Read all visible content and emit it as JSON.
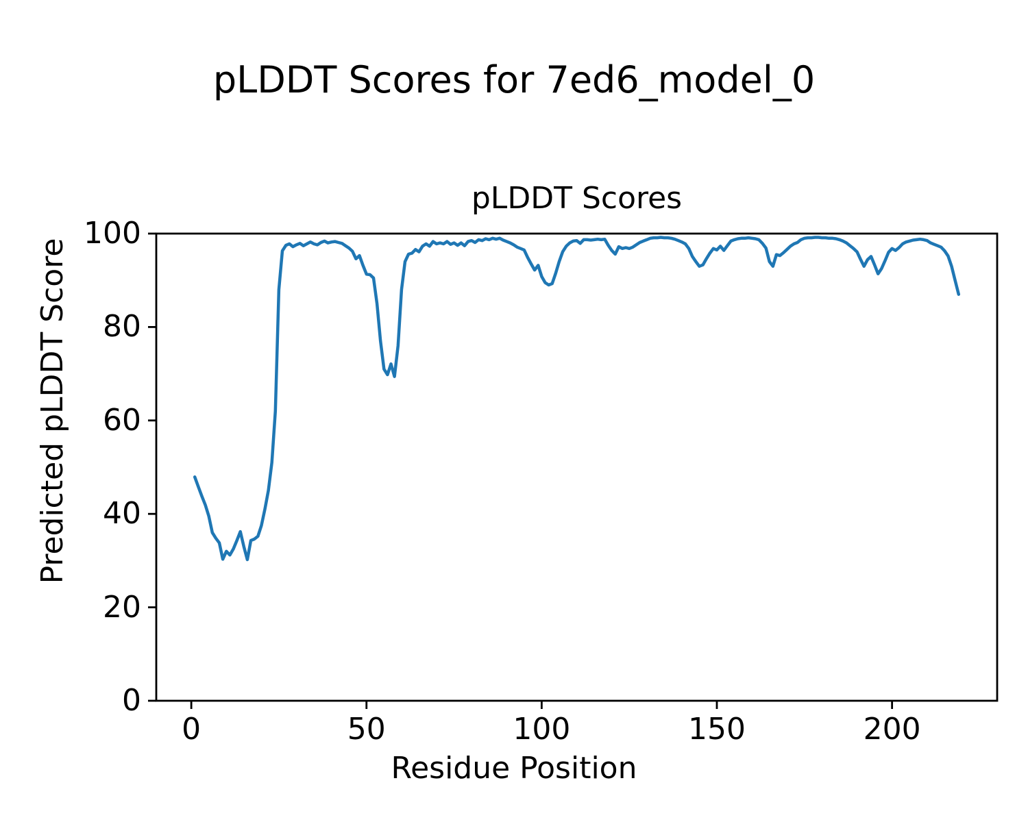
{
  "figure": {
    "suptitle": "pLDDT Scores for 7ed6_model_0",
    "background": "#ffffff"
  },
  "chart_data": {
    "type": "line",
    "title": "pLDDT Scores",
    "xlabel": "Residue Position",
    "ylabel": "Predicted pLDDT Score",
    "xlim": [
      -10,
      230
    ],
    "ylim": [
      0,
      100
    ],
    "xticks": [
      0,
      50,
      100,
      150,
      200
    ],
    "yticks": [
      0,
      20,
      40,
      60,
      80,
      100
    ],
    "grid": false,
    "legend": null,
    "line_color": "#1f77b4",
    "axis_color": "#000000",
    "series": [
      {
        "name": "pLDDT",
        "x_start": 1,
        "x_step": 1,
        "values": [
          47.9,
          45.8,
          43.8,
          41.9,
          39.5,
          36.0,
          34.8,
          33.8,
          30.3,
          32.0,
          31.2,
          32.5,
          34.3,
          36.2,
          33.0,
          30.2,
          34.3,
          34.6,
          35.2,
          37.5,
          41.0,
          45.0,
          51.0,
          62.0,
          88.0,
          96.3,
          97.5,
          97.8,
          97.2,
          97.6,
          97.9,
          97.4,
          97.8,
          98.2,
          97.8,
          97.6,
          98.1,
          98.4,
          98.0,
          98.2,
          98.3,
          98.1,
          97.9,
          97.4,
          96.9,
          96.2,
          94.6,
          95.3,
          93.2,
          91.3,
          91.2,
          90.5,
          85.0,
          77.0,
          71.0,
          69.8,
          72.1,
          69.4,
          76.0,
          88.0,
          94.0,
          95.6,
          95.8,
          96.6,
          96.1,
          97.3,
          97.8,
          97.3,
          98.3,
          97.8,
          98.0,
          97.8,
          98.3,
          97.7,
          98.0,
          97.5,
          98.0,
          97.4,
          98.3,
          98.5,
          98.1,
          98.7,
          98.5,
          98.9,
          98.7,
          99.0,
          98.8,
          99.0,
          98.6,
          98.3,
          98.0,
          97.6,
          97.1,
          96.8,
          96.5,
          94.9,
          93.5,
          92.2,
          93.2,
          90.8,
          89.5,
          89.0,
          89.3,
          91.5,
          94.0,
          96.1,
          97.3,
          98.0,
          98.4,
          98.5,
          97.9,
          98.7,
          98.7,
          98.6,
          98.7,
          98.8,
          98.7,
          98.8,
          97.5,
          96.4,
          95.6,
          97.2,
          96.8,
          97.0,
          96.8,
          97.1,
          97.6,
          98.1,
          98.4,
          98.7,
          99.0,
          99.1,
          99.1,
          99.2,
          99.1,
          99.1,
          99.0,
          98.8,
          98.5,
          98.2,
          97.8,
          96.8,
          95.1,
          94.0,
          93.0,
          93.3,
          94.6,
          95.8,
          96.8,
          96.5,
          97.3,
          96.4,
          97.4,
          98.4,
          98.7,
          98.9,
          99.0,
          99.0,
          99.1,
          99.0,
          98.9,
          98.7,
          97.9,
          96.9,
          94.0,
          93.0,
          95.5,
          95.3,
          95.9,
          96.6,
          97.3,
          97.8,
          98.1,
          98.7,
          99.0,
          99.1,
          99.1,
          99.2,
          99.2,
          99.1,
          99.1,
          99.0,
          99.0,
          98.9,
          98.7,
          98.4,
          98.0,
          97.4,
          96.8,
          96.1,
          94.5,
          93.0,
          94.4,
          95.1,
          93.3,
          91.4,
          92.5,
          94.2,
          96.0,
          96.8,
          96.4,
          97.0,
          97.8,
          98.2,
          98.4,
          98.6,
          98.7,
          98.8,
          98.7,
          98.5,
          98.0,
          97.7,
          97.4,
          97.1,
          96.3,
          95.2,
          93.0,
          90.0,
          87.0
        ]
      }
    ]
  }
}
